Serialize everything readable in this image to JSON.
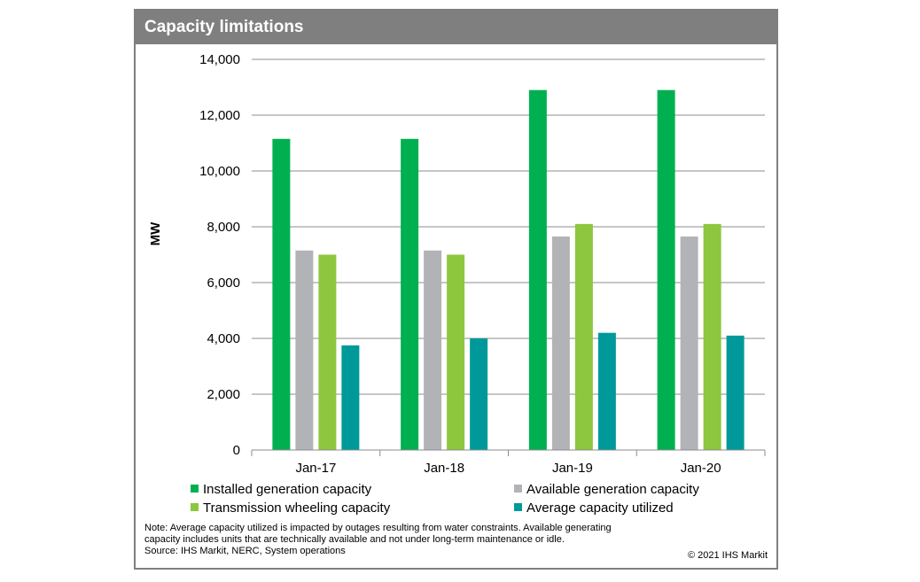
{
  "header": {
    "title": "Capacity limitations"
  },
  "chart_data": {
    "type": "bar",
    "title": "Capacity limitations",
    "xlabel": "",
    "ylabel": "MW",
    "ylim": [
      0,
      14000
    ],
    "yticks": [
      0,
      2000,
      4000,
      6000,
      8000,
      10000,
      12000,
      14000
    ],
    "ytick_labels": [
      "0",
      "2,000",
      "4,000",
      "6,000",
      "8,000",
      "10,000",
      "12,000",
      "14,000"
    ],
    "grid": "horizontal",
    "legend_placement": "bottom",
    "categories": [
      "Jan-17",
      "Jan-18",
      "Jan-19",
      "Jan-20"
    ],
    "series": [
      {
        "name": "Installed generation capacity",
        "color": "#00b050",
        "values": [
          11150,
          11150,
          12900,
          12900
        ]
      },
      {
        "name": "Available generation capacity",
        "color": "#b1b3b6",
        "values": [
          7150,
          7150,
          7650,
          7650
        ]
      },
      {
        "name": "Transmission wheeling capacity",
        "color": "#8dc63f",
        "values": [
          7000,
          7000,
          8100,
          8100
        ]
      },
      {
        "name": "Average capacity utilized",
        "color": "#009999",
        "values": [
          3750,
          4000,
          4200,
          4100
        ]
      }
    ]
  },
  "footer": {
    "note_lines": [
      "Note: Average capacity utilized is impacted by outages resulting from water constraints. Available generating",
      "capacity includes units that are technically available and not under long-term maintenance or idle.",
      "Source: IHS Markit, NERC, System operations"
    ],
    "copyright": "© 2021 IHS Markit"
  }
}
